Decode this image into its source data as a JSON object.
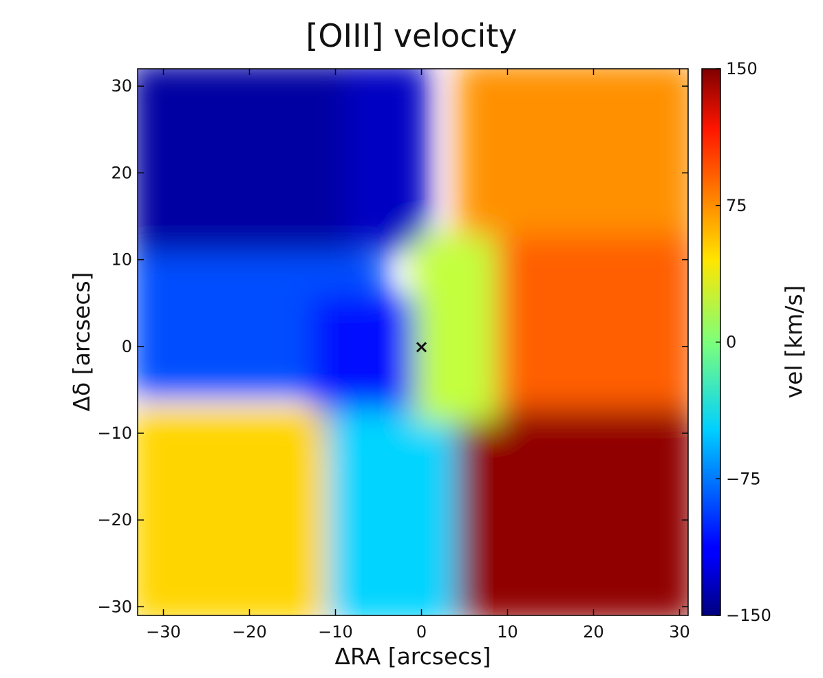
{
  "chart_data": {
    "type": "heatmap",
    "title": "[OIII] velocity",
    "xlabel": "ΔRA [arcsecs]",
    "ylabel": "Δδ [arcsecs]",
    "xlim": [
      -33,
      31
    ],
    "ylim": [
      -31,
      32
    ],
    "x_ticks": [
      -30,
      -20,
      -10,
      0,
      10,
      20,
      30
    ],
    "x_tick_labels": [
      "−30",
      "−20",
      "−10",
      "0",
      "10",
      "20",
      "30"
    ],
    "y_ticks": [
      -30,
      -20,
      -10,
      0,
      10,
      20,
      30
    ],
    "y_tick_labels": [
      "−30",
      "−20",
      "−10",
      "0",
      "10",
      "20",
      "30"
    ],
    "colorbar": {
      "label": "vel [km/s]",
      "range": [
        -150,
        150
      ],
      "ticks": [
        -150,
        -75,
        0,
        75,
        150
      ],
      "tick_labels": [
        "−150",
        "−75",
        "0",
        "75",
        "150"
      ],
      "colormap": "jet"
    },
    "center_marker": {
      "x": 0,
      "y": 0,
      "symbol": "×"
    },
    "velocity_regions": [
      {
        "name": "northeast",
        "x": [
          -33,
          -8
        ],
        "y": [
          10,
          32
        ],
        "velocity": -140
      },
      {
        "name": "north-center",
        "x": [
          -8,
          0
        ],
        "y": [
          12,
          32
        ],
        "velocity": -130
      },
      {
        "name": "east-middle",
        "x": [
          -33,
          -5
        ],
        "y": [
          -5,
          10
        ],
        "velocity": -90
      },
      {
        "name": "center-band",
        "x": [
          -12,
          3
        ],
        "y": [
          -10,
          5
        ],
        "velocity": -110
      },
      {
        "name": "southeast",
        "x": [
          -33,
          -12
        ],
        "y": [
          -31,
          -8
        ],
        "velocity": 50
      },
      {
        "name": "south-center",
        "x": [
          -10,
          5
        ],
        "y": [
          -31,
          -8
        ],
        "velocity": -50
      },
      {
        "name": "north-west",
        "x": [
          5,
          31
        ],
        "y": [
          12,
          32
        ],
        "velocity": 70
      },
      {
        "name": "west-middle",
        "x": [
          5,
          31
        ],
        "y": [
          -8,
          12
        ],
        "velocity": 85
      },
      {
        "name": "southwest",
        "x": [
          5,
          31
        ],
        "y": [
          -31,
          -8
        ],
        "velocity": 145
      },
      {
        "name": "center-west",
        "x": [
          0,
          8
        ],
        "y": [
          -8,
          12
        ],
        "velocity": 20
      }
    ]
  }
}
